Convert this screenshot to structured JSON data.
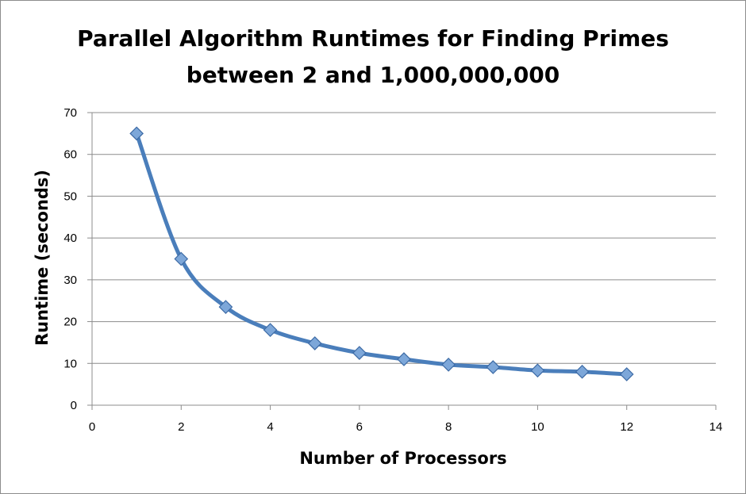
{
  "chart_data": {
    "type": "line",
    "title_lines": [
      "Parallel Algorithm Runtimes for Finding Primes",
      "between 2 and 1,000,000,000"
    ],
    "xlabel": "Number of Processors",
    "ylabel": "Runtime (seconds)",
    "xlim": [
      0,
      14
    ],
    "ylim": [
      0,
      70
    ],
    "xticks": [
      0,
      2,
      4,
      6,
      8,
      10,
      12,
      14
    ],
    "yticks": [
      0,
      10,
      20,
      30,
      40,
      50,
      60,
      70
    ],
    "grid": "horizontal",
    "legend": "none",
    "marker": "diamond",
    "smooth": true,
    "series": [
      {
        "x": [
          1,
          2,
          3,
          4,
          5,
          6,
          7,
          8,
          9,
          10,
          11,
          12
        ],
        "values": [
          65,
          35,
          23.5,
          18,
          14.8,
          12.5,
          11,
          9.7,
          9.1,
          8.3,
          8,
          7.4
        ]
      }
    ],
    "colors": {
      "line": "#4a7ebb",
      "marker_fill": "#7da7d9",
      "marker_stroke": "#3c6aa5",
      "grid": "#8c8c8c",
      "axis": "#8c8c8c"
    }
  }
}
